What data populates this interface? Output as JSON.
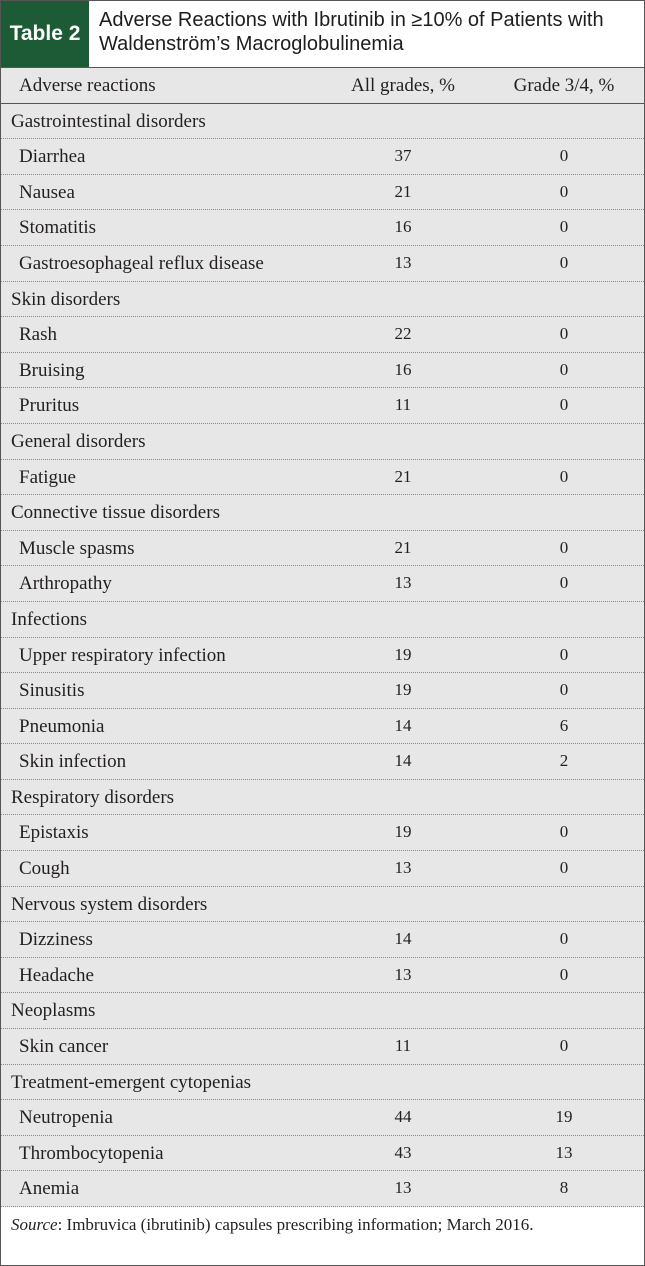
{
  "header": {
    "label": "Table 2",
    "title": "Adverse Reactions with Ibrutinib in ≥10% of Patients with Waldenström’s Macroglobulinemia"
  },
  "table": {
    "columns": [
      "Adverse reactions",
      "All grades, %",
      "Grade 3/4, %"
    ],
    "groups": [
      {
        "name": "Gastrointestinal disorders",
        "rows": [
          [
            "Diarrhea",
            37,
            0
          ],
          [
            "Nausea",
            21,
            0
          ],
          [
            "Stomatitis",
            16,
            0
          ],
          [
            "Gastroesophageal reflux disease",
            13,
            0
          ]
        ]
      },
      {
        "name": "Skin disorders",
        "rows": [
          [
            "Rash",
            22,
            0
          ],
          [
            "Bruising",
            16,
            0
          ],
          [
            "Pruritus",
            11,
            0
          ]
        ]
      },
      {
        "name": "General disorders",
        "rows": [
          [
            "Fatigue",
            21,
            0
          ]
        ]
      },
      {
        "name": "Connective tissue disorders",
        "rows": [
          [
            "Muscle spasms",
            21,
            0
          ],
          [
            "Arthropathy",
            13,
            0
          ]
        ]
      },
      {
        "name": "Infections",
        "rows": [
          [
            "Upper respiratory infection",
            19,
            0
          ],
          [
            "Sinusitis",
            19,
            0
          ],
          [
            "Pneumonia",
            14,
            6
          ],
          [
            "Skin infection",
            14,
            2
          ]
        ]
      },
      {
        "name": "Respiratory disorders",
        "rows": [
          [
            "Epistaxis",
            19,
            0
          ],
          [
            "Cough",
            13,
            0
          ]
        ]
      },
      {
        "name": "Nervous system disorders",
        "rows": [
          [
            "Dizziness",
            14,
            0
          ],
          [
            "Headache",
            13,
            0
          ]
        ]
      },
      {
        "name": "Neoplasms",
        "rows": [
          [
            "Skin cancer",
            11,
            0
          ]
        ]
      },
      {
        "name": "Treatment-emergent cytopenias",
        "rows": [
          [
            "Neutropenia",
            44,
            19
          ],
          [
            "Thrombocytopenia",
            43,
            13
          ],
          [
            "Anemia",
            13,
            8
          ]
        ]
      }
    ]
  },
  "source": {
    "label": "Source",
    "text": ": Imbruvica (ibrutinib) capsules prescribing information; March 2016."
  }
}
